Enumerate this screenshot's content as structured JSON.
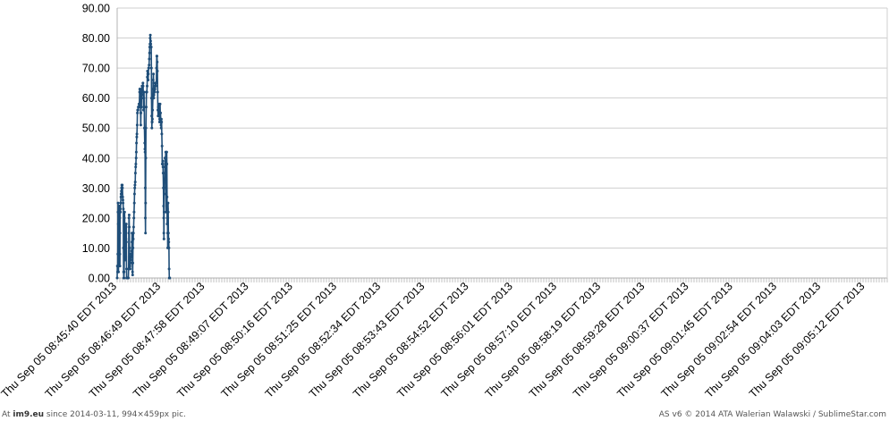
{
  "footer": {
    "left_prefix": "At ",
    "left_site": "im9.eu",
    "left_suffix": "  since 2014-03-11, 994×459px pic.",
    "right": "AS v6 © 2014 ATA Walerian Walawski / SublimeStar.com"
  },
  "chart_data": {
    "type": "line",
    "title": "",
    "xlabel": "",
    "ylabel": "",
    "ylim": [
      0,
      90
    ],
    "yticks": [
      "0.00",
      "10.00",
      "20.00",
      "30.00",
      "40.00",
      "50.00",
      "60.00",
      "70.00",
      "80.00",
      "90.00"
    ],
    "grid": true,
    "legend": "none",
    "color": "#1f4e79",
    "x_tick_labels": [
      "Thu Sep 05 08:45:40 EDT 2013",
      "Thu Sep 05 08:46:49 EDT 2013",
      "Thu Sep 05 08:47:58 EDT 2013",
      "Thu Sep 05 08:49:07 EDT 2013",
      "Thu Sep 05 08:50:16 EDT 2013",
      "Thu Sep 05 08:51:25 EDT 2013",
      "Thu Sep 05 08:52:34 EDT 2013",
      "Thu Sep 05 08:53:43 EDT 2013",
      "Thu Sep 05 08:54:52 EDT 2013",
      "Thu Sep 05 08:56:01 EDT 2013",
      "Thu Sep 05 08:57:10 EDT 2013",
      "Thu Sep 05 08:58:19 EDT 2013",
      "Thu Sep 05 08:59:28 EDT 2013",
      "Thu Sep 05 09:00:37 EDT 2013",
      "Thu Sep 05 09:01:45 EDT 2013",
      "Thu Sep 05 09:02:54 EDT 2013",
      "Thu Sep 05 09:04:03 EDT 2013",
      "Thu Sep 05 09:05:12 EDT 2013"
    ],
    "series": [
      {
        "points": [
          [
            0.0,
            0
          ],
          [
            0.005,
            4
          ],
          [
            0.01,
            2
          ],
          [
            0.015,
            8
          ],
          [
            0.018,
            22
          ],
          [
            0.02,
            25
          ],
          [
            0.024,
            18
          ],
          [
            0.028,
            4
          ],
          [
            0.031,
            2
          ],
          [
            0.034,
            10
          ],
          [
            0.038,
            18
          ],
          [
            0.042,
            22
          ],
          [
            0.046,
            24
          ],
          [
            0.05,
            22
          ],
          [
            0.054,
            24
          ],
          [
            0.058,
            20
          ],
          [
            0.06,
            8
          ],
          [
            0.062,
            4
          ],
          [
            0.065,
            15
          ],
          [
            0.068,
            22
          ],
          [
            0.072,
            23
          ],
          [
            0.076,
            22
          ],
          [
            0.08,
            25
          ],
          [
            0.085,
            27
          ],
          [
            0.09,
            28
          ],
          [
            0.095,
            29
          ],
          [
            0.1,
            30
          ],
          [
            0.105,
            31
          ],
          [
            0.11,
            30
          ],
          [
            0.115,
            31
          ],
          [
            0.12,
            30
          ],
          [
            0.125,
            27
          ],
          [
            0.13,
            26
          ],
          [
            0.135,
            25
          ],
          [
            0.14,
            23
          ],
          [
            0.143,
            10
          ],
          [
            0.146,
            2
          ],
          [
            0.15,
            0
          ],
          [
            0.154,
            0
          ],
          [
            0.158,
            2
          ],
          [
            0.162,
            10
          ],
          [
            0.165,
            20
          ],
          [
            0.168,
            22
          ],
          [
            0.172,
            18
          ],
          [
            0.176,
            10
          ],
          [
            0.18,
            6
          ],
          [
            0.185,
            6
          ],
          [
            0.19,
            7
          ],
          [
            0.195,
            7
          ],
          [
            0.199,
            13
          ],
          [
            0.203,
            17
          ],
          [
            0.207,
            18
          ],
          [
            0.21,
            12
          ],
          [
            0.213,
            3
          ],
          [
            0.216,
            0
          ],
          [
            0.23,
            0
          ],
          [
            0.245,
            0
          ],
          [
            0.255,
            0
          ],
          [
            0.26,
            3
          ],
          [
            0.264,
            15
          ],
          [
            0.268,
            20
          ],
          [
            0.272,
            21
          ],
          [
            0.276,
            17
          ],
          [
            0.28,
            10
          ],
          [
            0.285,
            5
          ],
          [
            0.29,
            4
          ],
          [
            0.295,
            3
          ],
          [
            0.3,
            5
          ],
          [
            0.305,
            6
          ],
          [
            0.31,
            7
          ],
          [
            0.315,
            7
          ],
          [
            0.32,
            8
          ],
          [
            0.325,
            8
          ],
          [
            0.33,
            9
          ],
          [
            0.335,
            12
          ],
          [
            0.338,
            15
          ],
          [
            0.342,
            12
          ],
          [
            0.345,
            5
          ],
          [
            0.349,
            2
          ],
          [
            0.352,
            1
          ],
          [
            0.356,
            5
          ],
          [
            0.36,
            10
          ],
          [
            0.365,
            13
          ],
          [
            0.37,
            15
          ],
          [
            0.375,
            17
          ],
          [
            0.38,
            20
          ],
          [
            0.385,
            22
          ],
          [
            0.39,
            25
          ],
          [
            0.395,
            28
          ],
          [
            0.4,
            30
          ],
          [
            0.405,
            31
          ],
          [
            0.41,
            32
          ],
          [
            0.415,
            35
          ],
          [
            0.42,
            37
          ],
          [
            0.425,
            38
          ],
          [
            0.43,
            40
          ],
          [
            0.435,
            42
          ],
          [
            0.44,
            45
          ],
          [
            0.445,
            47
          ],
          [
            0.45,
            48
          ],
          [
            0.455,
            51
          ],
          [
            0.46,
            55
          ],
          [
            0.465,
            56
          ],
          [
            0.47,
            56
          ],
          [
            0.475,
            56
          ],
          [
            0.48,
            57
          ],
          [
            0.485,
            57
          ],
          [
            0.49,
            57
          ],
          [
            0.495,
            58
          ],
          [
            0.5,
            57
          ],
          [
            0.505,
            58
          ],
          [
            0.51,
            62
          ],
          [
            0.515,
            63
          ],
          [
            0.52,
            62
          ],
          [
            0.525,
            63
          ],
          [
            0.53,
            62
          ],
          [
            0.533,
            55
          ],
          [
            0.537,
            51
          ],
          [
            0.54,
            55
          ],
          [
            0.545,
            57
          ],
          [
            0.55,
            57
          ],
          [
            0.555,
            61
          ],
          [
            0.56,
            62
          ],
          [
            0.565,
            64
          ],
          [
            0.57,
            63
          ],
          [
            0.575,
            62
          ],
          [
            0.58,
            64
          ],
          [
            0.585,
            65
          ],
          [
            0.59,
            64
          ],
          [
            0.595,
            60
          ],
          [
            0.6,
            56
          ],
          [
            0.605,
            60
          ],
          [
            0.61,
            62
          ],
          [
            0.615,
            57
          ],
          [
            0.62,
            50
          ],
          [
            0.625,
            45
          ],
          [
            0.63,
            43
          ],
          [
            0.635,
            42
          ],
          [
            0.638,
            30
          ],
          [
            0.641,
            20
          ],
          [
            0.644,
            15
          ],
          [
            0.647,
            25
          ],
          [
            0.65,
            40
          ],
          [
            0.655,
            50
          ],
          [
            0.66,
            57
          ],
          [
            0.665,
            62
          ],
          [
            0.67,
            62
          ],
          [
            0.675,
            62
          ],
          [
            0.68,
            64
          ],
          [
            0.685,
            67
          ],
          [
            0.69,
            69
          ],
          [
            0.695,
            68
          ],
          [
            0.7,
            66
          ],
          [
            0.705,
            66
          ],
          [
            0.71,
            68
          ],
          [
            0.715,
            70
          ],
          [
            0.72,
            70
          ],
          [
            0.725,
            71
          ],
          [
            0.73,
            73
          ],
          [
            0.735,
            75
          ],
          [
            0.74,
            77
          ],
          [
            0.745,
            78
          ],
          [
            0.75,
            80
          ],
          [
            0.755,
            81
          ],
          [
            0.76,
            79
          ],
          [
            0.765,
            78
          ],
          [
            0.77,
            77
          ],
          [
            0.775,
            77
          ],
          [
            0.778,
            70
          ],
          [
            0.781,
            60
          ],
          [
            0.784,
            54
          ],
          [
            0.788,
            50
          ],
          [
            0.792,
            52
          ],
          [
            0.796,
            52
          ],
          [
            0.8,
            53
          ],
          [
            0.805,
            56
          ],
          [
            0.81,
            60
          ],
          [
            0.815,
            63
          ],
          [
            0.82,
            66
          ],
          [
            0.825,
            68
          ],
          [
            0.828,
            65
          ],
          [
            0.832,
            60
          ],
          [
            0.836,
            61
          ],
          [
            0.84,
            63
          ],
          [
            0.845,
            63
          ],
          [
            0.85,
            62
          ],
          [
            0.855,
            62
          ],
          [
            0.86,
            63
          ],
          [
            0.865,
            64
          ],
          [
            0.87,
            65
          ],
          [
            0.875,
            64
          ],
          [
            0.88,
            65
          ],
          [
            0.885,
            65
          ],
          [
            0.89,
            65
          ],
          [
            0.895,
            70
          ],
          [
            0.9,
            74
          ],
          [
            0.905,
            74
          ],
          [
            0.91,
            72
          ],
          [
            0.915,
            69
          ],
          [
            0.92,
            62
          ],
          [
            0.925,
            56
          ],
          [
            0.93,
            54
          ],
          [
            0.935,
            57
          ],
          [
            0.94,
            57
          ],
          [
            0.945,
            56
          ],
          [
            0.95,
            57
          ],
          [
            0.955,
            58
          ],
          [
            0.96,
            55
          ],
          [
            0.963,
            52
          ],
          [
            0.966,
            53
          ],
          [
            0.97,
            55
          ],
          [
            0.975,
            58
          ],
          [
            0.98,
            55
          ],
          [
            0.985,
            55
          ],
          [
            0.99,
            53
          ],
          [
            0.995,
            51
          ],
          [
            1.0,
            50
          ],
          [
            1.005,
            53
          ],
          [
            1.01,
            52
          ],
          [
            1.015,
            48
          ],
          [
            1.02,
            44
          ],
          [
            1.025,
            38
          ],
          [
            1.03,
            38
          ],
          [
            1.035,
            39
          ],
          [
            1.04,
            37
          ],
          [
            1.045,
            35
          ],
          [
            1.05,
            30
          ],
          [
            1.055,
            24
          ],
          [
            1.058,
            20
          ],
          [
            1.061,
            15
          ],
          [
            1.064,
            13
          ],
          [
            1.068,
            22
          ],
          [
            1.072,
            28
          ],
          [
            1.076,
            30
          ],
          [
            1.08,
            33
          ],
          [
            1.084,
            37
          ],
          [
            1.088,
            40
          ],
          [
            1.092,
            38
          ],
          [
            1.096,
            33
          ],
          [
            1.1,
            40
          ],
          [
            1.104,
            42
          ],
          [
            1.108,
            37
          ],
          [
            1.112,
            28
          ],
          [
            1.115,
            22
          ],
          [
            1.118,
            30
          ],
          [
            1.122,
            38
          ],
          [
            1.126,
            42
          ],
          [
            1.13,
            38
          ],
          [
            1.134,
            27
          ],
          [
            1.137,
            18
          ],
          [
            1.14,
            20
          ],
          [
            1.143,
            23
          ],
          [
            1.146,
            15
          ],
          [
            1.149,
            10
          ],
          [
            1.153,
            20
          ],
          [
            1.157,
            25
          ],
          [
            1.161,
            22
          ],
          [
            1.165,
            15
          ],
          [
            1.169,
            13
          ],
          [
            1.173,
            12
          ],
          [
            1.177,
            10
          ],
          [
            1.181,
            3
          ],
          [
            1.184,
            0
          ],
          [
            1.19,
            0
          ],
          [
            1.195,
            0
          ]
        ]
      }
    ]
  }
}
